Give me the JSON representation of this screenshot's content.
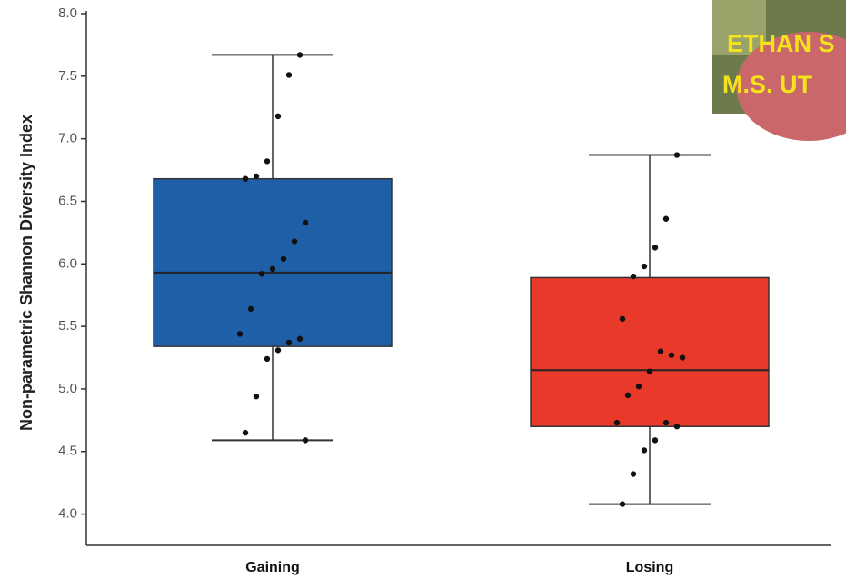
{
  "chart_data": {
    "type": "box",
    "y_label": "Non-parametric Shannon Diversity Index",
    "categories": [
      "Gaining",
      "Losing"
    ],
    "boxes": [
      {
        "color": "#1f5fa8",
        "min": 4.59,
        "q1": 5.34,
        "median": 5.93,
        "q3": 6.68,
        "max": 7.67,
        "points": [
          7.67,
          7.51,
          7.18,
          6.82,
          6.7,
          6.68,
          6.33,
          6.18,
          6.04,
          5.96,
          5.92,
          5.64,
          5.44,
          5.4,
          5.37,
          5.31,
          5.24,
          4.94,
          4.65,
          4.59
        ]
      },
      {
        "color": "#e8392a",
        "min": 4.08,
        "q1": 4.7,
        "median": 5.15,
        "q3": 5.89,
        "max": 6.87,
        "points": [
          6.87,
          6.36,
          6.13,
          5.98,
          5.9,
          5.56,
          5.25,
          5.27,
          5.3,
          5.14,
          5.02,
          4.95,
          4.73,
          4.7,
          4.73,
          4.59,
          4.51,
          4.32,
          4.08
        ]
      }
    ],
    "ylim": [
      3.75,
      8.0
    ],
    "yticks": [
      {
        "value": 4,
        "label": "4.0"
      },
      {
        "value": 4.5,
        "label": "4.5"
      },
      {
        "value": 5,
        "label": "5.0"
      },
      {
        "value": 5.5,
        "label": "5.5"
      },
      {
        "value": 6,
        "label": "6.0"
      },
      {
        "value": 6.5,
        "label": "6.5"
      },
      {
        "value": 7,
        "label": "7.0"
      },
      {
        "value": 7.5,
        "label": "7.5"
      },
      {
        "value": 8,
        "label": "8.0"
      }
    ]
  },
  "overlay": {
    "lines": [
      "ETHAN S",
      "M.S. UT"
    ]
  }
}
